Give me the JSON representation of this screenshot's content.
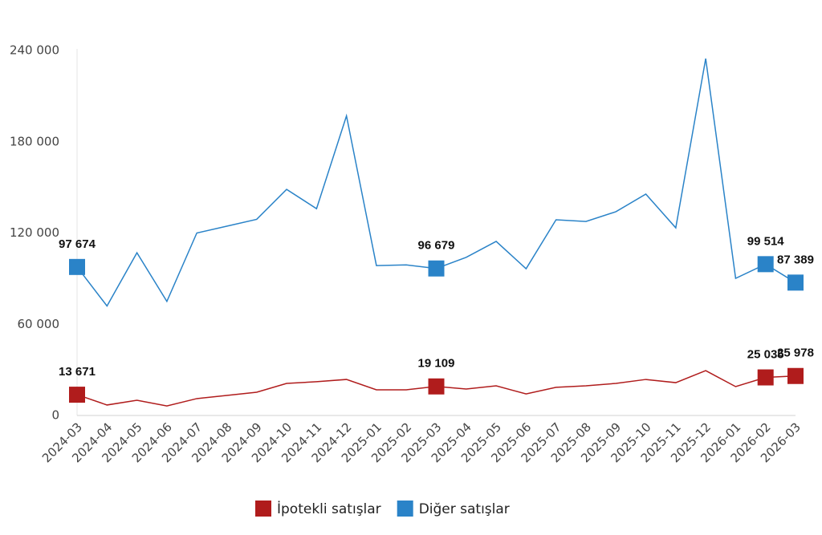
{
  "chart_data": {
    "type": "line",
    "categories": [
      "2024-03",
      "2024-04",
      "2024-05",
      "2024-06",
      "2024-07",
      "2024-08",
      "2024-09",
      "2024-10",
      "2024-11",
      "2024-12",
      "2025-01",
      "2025-02",
      "2025-03",
      "2025-04",
      "2025-05",
      "2025-06",
      "2025-07",
      "2025-08",
      "2025-09",
      "2025-10",
      "2025-11",
      "2025-12",
      "2026-01",
      "2026-02",
      "2026-03"
    ],
    "series": [
      {
        "name": "İpotekli satışlar",
        "color": "#b01c1c",
        "values": [
          13671,
          6900,
          10000,
          6300,
          11100,
          13200,
          15300,
          21100,
          22200,
          23700,
          16900,
          16900,
          19109,
          17400,
          19500,
          14200,
          18500,
          19500,
          21100,
          23700,
          21600,
          29500,
          19000,
          25035,
          25978
        ],
        "value_labels": [
          "13 671",
          null,
          null,
          null,
          null,
          null,
          null,
          null,
          null,
          null,
          null,
          null,
          "19 109",
          null,
          null,
          null,
          null,
          null,
          null,
          null,
          null,
          null,
          null,
          "25 035",
          "25 978"
        ]
      },
      {
        "name": "Diğer satışlar",
        "color": "#2a83c8",
        "values": [
          97674,
          72000,
          107000,
          75000,
          120000,
          124500,
          129000,
          148700,
          136000,
          197000,
          98600,
          99000,
          96679,
          104000,
          114500,
          96500,
          128700,
          127600,
          134000,
          145600,
          123400,
          234700,
          90200,
          99514,
          87389
        ],
        "value_labels": [
          "97 674",
          null,
          null,
          null,
          null,
          null,
          null,
          null,
          null,
          null,
          null,
          null,
          "96 679",
          null,
          null,
          null,
          null,
          null,
          null,
          null,
          null,
          null,
          null,
          "99 514",
          "87 389"
        ]
      }
    ],
    "ylim": [
      0,
      240000
    ],
    "yticks": [
      0,
      {
        "value": 60000,
        "label": "60 000"
      },
      {
        "value": 120000,
        "label": "120 000"
      },
      {
        "value": 180000,
        "label": "180 000"
      },
      {
        "value": 240000,
        "label": "240 000"
      }
    ],
    "legend": "bottom"
  }
}
